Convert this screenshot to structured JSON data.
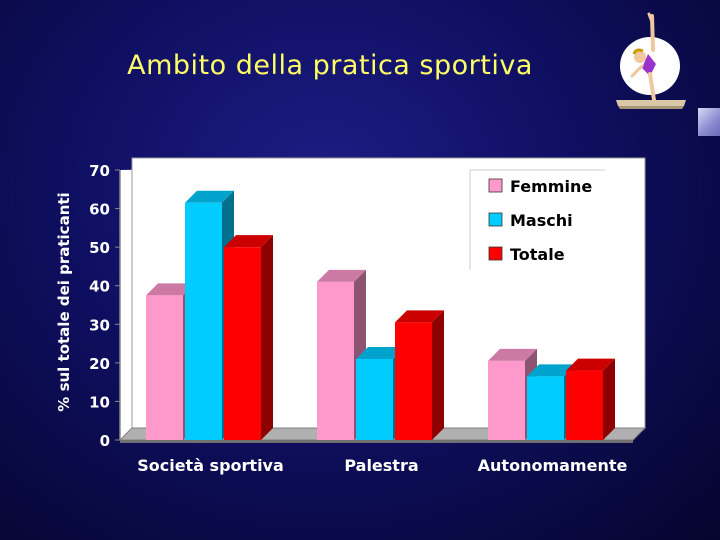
{
  "slide": {
    "title": "Ambito della pratica sportiva"
  },
  "colors": {
    "background": "#0f0f62",
    "title": "#ffff66",
    "femmine": "#ff99cc",
    "maschi": "#00ccff",
    "totale": "#ff0000"
  },
  "clipart": {
    "icon": "gymnast-icon"
  },
  "chart_data": {
    "type": "bar",
    "style": "3d-clustered-column",
    "title": "",
    "xlabel": "",
    "ylabel": "% sul totale dei praticanti",
    "categories": [
      "Società sportiva",
      "Palestra",
      "Autonomamente"
    ],
    "series": [
      {
        "name": "Femmine",
        "values": [
          37.5,
          41,
          20.5
        ]
      },
      {
        "name": "Maschi",
        "values": [
          61.5,
          21,
          16.5
        ]
      },
      {
        "name": "Totale",
        "values": [
          50,
          30.5,
          18
        ]
      }
    ],
    "ylim": [
      0,
      70
    ],
    "yticks": [
      "0",
      "10",
      "20",
      "30",
      "40",
      "50",
      "60",
      "70"
    ],
    "grid": false,
    "legend_position": "top-right"
  }
}
